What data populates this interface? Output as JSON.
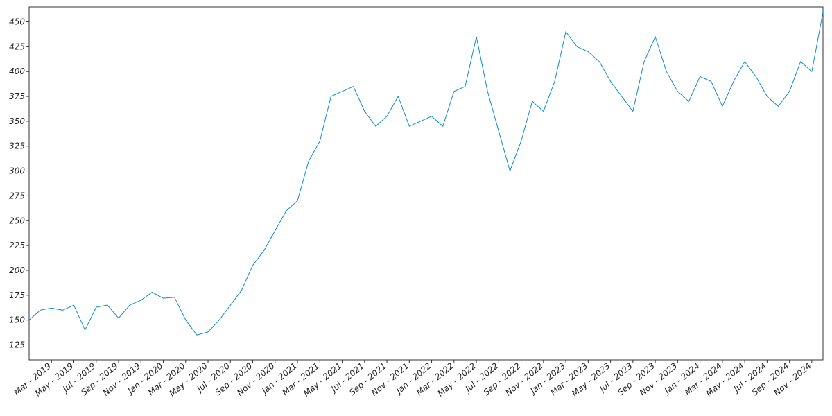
{
  "chart_data": {
    "type": "line",
    "x": [
      "2019-01",
      "2019-02",
      "2019-03",
      "2019-04",
      "2019-05",
      "2019-06",
      "2019-07",
      "2019-08",
      "2019-09",
      "2019-10",
      "2019-11",
      "2019-12",
      "2020-01",
      "2020-02",
      "2020-03",
      "2020-04",
      "2020-05",
      "2020-06",
      "2020-07",
      "2020-08",
      "2020-09",
      "2020-10",
      "2020-11",
      "2020-12",
      "2021-01",
      "2021-02",
      "2021-03",
      "2021-04",
      "2021-05",
      "2021-06",
      "2021-07",
      "2021-08",
      "2021-09",
      "2021-10",
      "2021-11",
      "2021-12",
      "2022-01",
      "2022-02",
      "2022-03",
      "2022-04",
      "2022-05",
      "2022-06",
      "2022-07",
      "2022-08",
      "2022-09",
      "2022-10",
      "2022-11",
      "2022-12",
      "2023-01",
      "2023-02",
      "2023-03",
      "2023-04",
      "2023-05",
      "2023-06",
      "2023-07",
      "2023-08",
      "2023-09",
      "2023-10",
      "2023-11",
      "2023-12",
      "2024-01",
      "2024-02",
      "2024-03",
      "2024-04",
      "2024-05",
      "2024-06",
      "2024-07",
      "2024-08",
      "2024-09",
      "2024-10",
      "2024-11",
      "2024-12"
    ],
    "series": [
      {
        "color": "#0a8ad1",
        "values": [
          150,
          160,
          162,
          160,
          165,
          140,
          163,
          165,
          152,
          165,
          170,
          178,
          172,
          173,
          150,
          135,
          138,
          150,
          165,
          180,
          205,
          220,
          240,
          260,
          270,
          310,
          330,
          375,
          380,
          385,
          360,
          345,
          355,
          375,
          345,
          350,
          355,
          345,
          380,
          385,
          435,
          380,
          340,
          300,
          330,
          370,
          360,
          390,
          440,
          425,
          420,
          410,
          390,
          375,
          360,
          410,
          435,
          400,
          380,
          370,
          395,
          390,
          365,
          390,
          410,
          395,
          375,
          365,
          380,
          410,
          400,
          460
        ]
      }
    ],
    "xlim": [
      "2019-01",
      "2024-12"
    ],
    "xticks": [
      {
        "value": "2019-03",
        "label": "Mar - 2019"
      },
      {
        "value": "2019-05",
        "label": "May - 2019"
      },
      {
        "value": "2019-07",
        "label": "Jul - 2019"
      },
      {
        "value": "2019-09",
        "label": "Sep - 2019"
      },
      {
        "value": "2019-11",
        "label": "Nov - 2019"
      },
      {
        "value": "2020-01",
        "label": "Jan - 2020"
      },
      {
        "value": "2020-03",
        "label": "Mar - 2020"
      },
      {
        "value": "2020-05",
        "label": "May - 2020"
      },
      {
        "value": "2020-07",
        "label": "Jul - 2020"
      },
      {
        "value": "2020-09",
        "label": "Sep - 2020"
      },
      {
        "value": "2020-11",
        "label": "Nov - 2020"
      },
      {
        "value": "2021-01",
        "label": "Jan - 2021"
      },
      {
        "value": "2021-03",
        "label": "Mar - 2021"
      },
      {
        "value": "2021-05",
        "label": "May - 2021"
      },
      {
        "value": "2021-07",
        "label": "Jul - 2021"
      },
      {
        "value": "2021-09",
        "label": "Sep - 2021"
      },
      {
        "value": "2021-11",
        "label": "Nov - 2021"
      },
      {
        "value": "2022-01",
        "label": "Jan - 2022"
      },
      {
        "value": "2022-03",
        "label": "Mar - 2022"
      },
      {
        "value": "2022-05",
        "label": "May - 2022"
      },
      {
        "value": "2022-07",
        "label": "Jul - 2022"
      },
      {
        "value": "2022-09",
        "label": "Sep - 2022"
      },
      {
        "value": "2022-11",
        "label": "Nov - 2022"
      },
      {
        "value": "2023-01",
        "label": "Jan - 2023"
      },
      {
        "value": "2023-03",
        "label": "Mar - 2023"
      },
      {
        "value": "2023-05",
        "label": "May - 2023"
      },
      {
        "value": "2023-07",
        "label": "Jul - 2023"
      },
      {
        "value": "2023-09",
        "label": "Sep - 2023"
      },
      {
        "value": "2023-11",
        "label": "Nov - 2023"
      },
      {
        "value": "2024-01",
        "label": "Jan - 2024"
      },
      {
        "value": "2024-03",
        "label": "Mar - 2024"
      },
      {
        "value": "2024-05",
        "label": "May - 2024"
      },
      {
        "value": "2024-07",
        "label": "Jul - 2024"
      },
      {
        "value": "2024-09",
        "label": "Sep - 2024"
      },
      {
        "value": "2024-11",
        "label": "Nov - 2024"
      }
    ],
    "ylim": [
      110,
      465
    ],
    "yticks": [
      125,
      150,
      175,
      200,
      225,
      250,
      275,
      300,
      325,
      350,
      375,
      400,
      425,
      450
    ]
  }
}
